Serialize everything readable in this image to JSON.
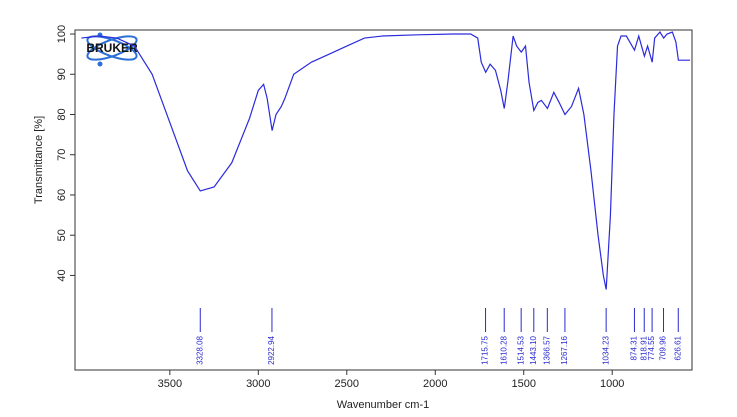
{
  "chart_data": {
    "type": "line",
    "logo": "BRUKER",
    "x_label": "Wavenumber cm-1",
    "y_label": "Transmittance [%]",
    "xlim": [
      4036,
      549
    ],
    "ylim": [
      16.5,
      101
    ],
    "xticks": [
      3500,
      3000,
      2500,
      2000,
      1500,
      1000
    ],
    "yticks": [
      40,
      50,
      60,
      70,
      80,
      90,
      100
    ],
    "x": [
      4000,
      3900,
      3800,
      3700,
      3600,
      3500,
      3400,
      3328,
      3250,
      3150,
      3050,
      3000,
      2970,
      2950,
      2922,
      2900,
      2870,
      2850,
      2800,
      2700,
      2600,
      2500,
      2400,
      2300,
      2100,
      1900,
      1800,
      1760,
      1740,
      1715,
      1690,
      1660,
      1630,
      1610,
      1590,
      1560,
      1540,
      1514,
      1490,
      1470,
      1443,
      1420,
      1400,
      1366,
      1330,
      1300,
      1267,
      1230,
      1190,
      1160,
      1120,
      1080,
      1050,
      1034,
      1010,
      990,
      970,
      950,
      920,
      874,
      850,
      818,
      800,
      774,
      760,
      730,
      709,
      690,
      660,
      640,
      626,
      560
    ],
    "series": [
      {
        "color": "#2b2bdc",
        "values": [
          99,
          99.5,
          99,
          97,
          90,
          78,
          66,
          61,
          62,
          68,
          79,
          86,
          87.5,
          84,
          76,
          80,
          82,
          84,
          90,
          93,
          95,
          97,
          99,
          99.5,
          99.8,
          100,
          100,
          99,
          93,
          90.5,
          92.5,
          91,
          86,
          81.5,
          88,
          99.5,
          97,
          95.5,
          97,
          88,
          81,
          83,
          83.5,
          81.5,
          85.5,
          83,
          80,
          82,
          86.5,
          80,
          66,
          50,
          40,
          36.5,
          55,
          80,
          97,
          99.5,
          99.5,
          96,
          99.5,
          94.5,
          97,
          93,
          99,
          100.5,
          99,
          100,
          100.5,
          98,
          93.5,
          93.5
        ]
      }
    ],
    "peaks": [
      3328.08,
      2922.94,
      1715.75,
      1610.28,
      1514.53,
      {
        "value": 1443.1,
        "label": "1443.10"
      },
      1366.57,
      1267.16,
      1034.23,
      874.31,
      818.91,
      774.55,
      709.96,
      626.61
    ]
  }
}
